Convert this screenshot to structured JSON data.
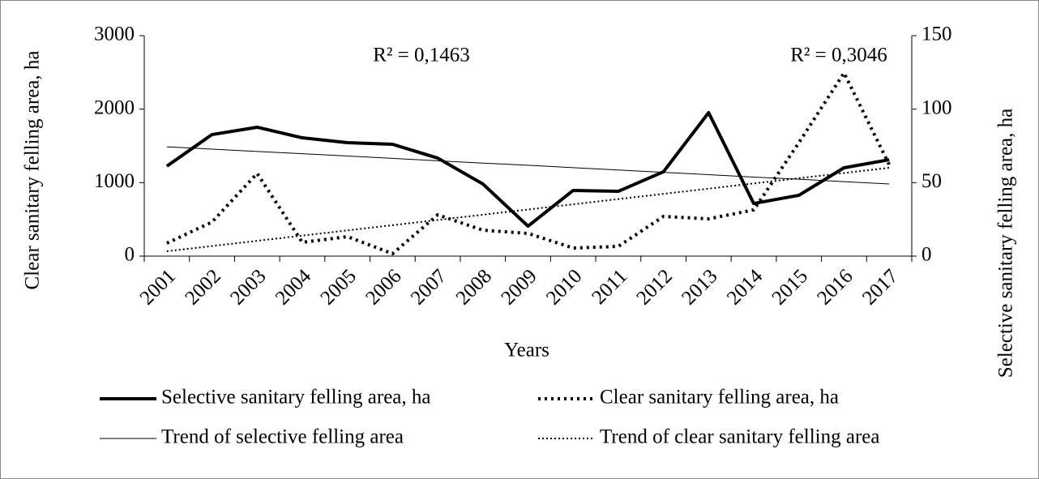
{
  "chart_data": {
    "type": "line",
    "xlabel": "Years",
    "ylabel": "Clear sanitary felling area, ha",
    "y2label": "Selective sanitary felling area, ha",
    "categories": [
      "2001",
      "2002",
      "2003",
      "2004",
      "2005",
      "2006",
      "2007",
      "2008",
      "2009",
      "2010",
      "2011",
      "2012",
      "2013",
      "2014",
      "2015",
      "2016",
      "2017"
    ],
    "series": [
      {
        "name": "Selective sanitary felling area, ha",
        "color": "#000000",
        "style": "solid",
        "width": 4,
        "axis": "y2",
        "values": [
          61.2,
          82.7,
          87.7,
          80.5,
          77.2,
          76.1,
          66.7,
          49.1,
          20.4,
          44.7,
          44.1,
          57.4,
          97.6,
          35.8,
          41.4,
          60.1,
          65.6
        ]
      },
      {
        "name": "Clear sanitary felling area, ha",
        "color": "#000000",
        "style": "dotted",
        "width": 4,
        "axis": "y",
        "values": [
          176,
          463,
          1125,
          188,
          265,
          33,
          562,
          353,
          309,
          110,
          132,
          540,
          507,
          629,
          1544,
          2493,
          1246
        ]
      },
      {
        "name": "Trend of selective felling area",
        "color": "#000000",
        "style": "solid",
        "width": 1,
        "axis": "y2",
        "values": [
          74.4,
          72.8,
          71.2,
          69.7,
          68.1,
          66.5,
          64.9,
          63.3,
          61.8,
          60.2,
          58.6,
          57.0,
          55.4,
          53.8,
          52.3,
          50.7,
          49.1
        ]
      },
      {
        "name": "Trend of clear sanitary felling area",
        "color": "#000000",
        "style": "dotted",
        "width": 2,
        "axis": "y",
        "values": [
          66,
          137,
          208,
          279,
          350,
          421,
          492,
          563,
          634,
          705,
          776,
          847,
          918,
          989,
          1060,
          1131,
          1202
        ]
      }
    ],
    "annotations": [
      "R² = 0,1463",
      "R² = 0,3046"
    ],
    "ylim": [
      0,
      3000
    ],
    "yticks": [
      0,
      1000,
      2000,
      3000
    ],
    "y2lim": [
      0,
      150
    ],
    "y2ticks": [
      0,
      50,
      100,
      150
    ],
    "grid": false
  }
}
